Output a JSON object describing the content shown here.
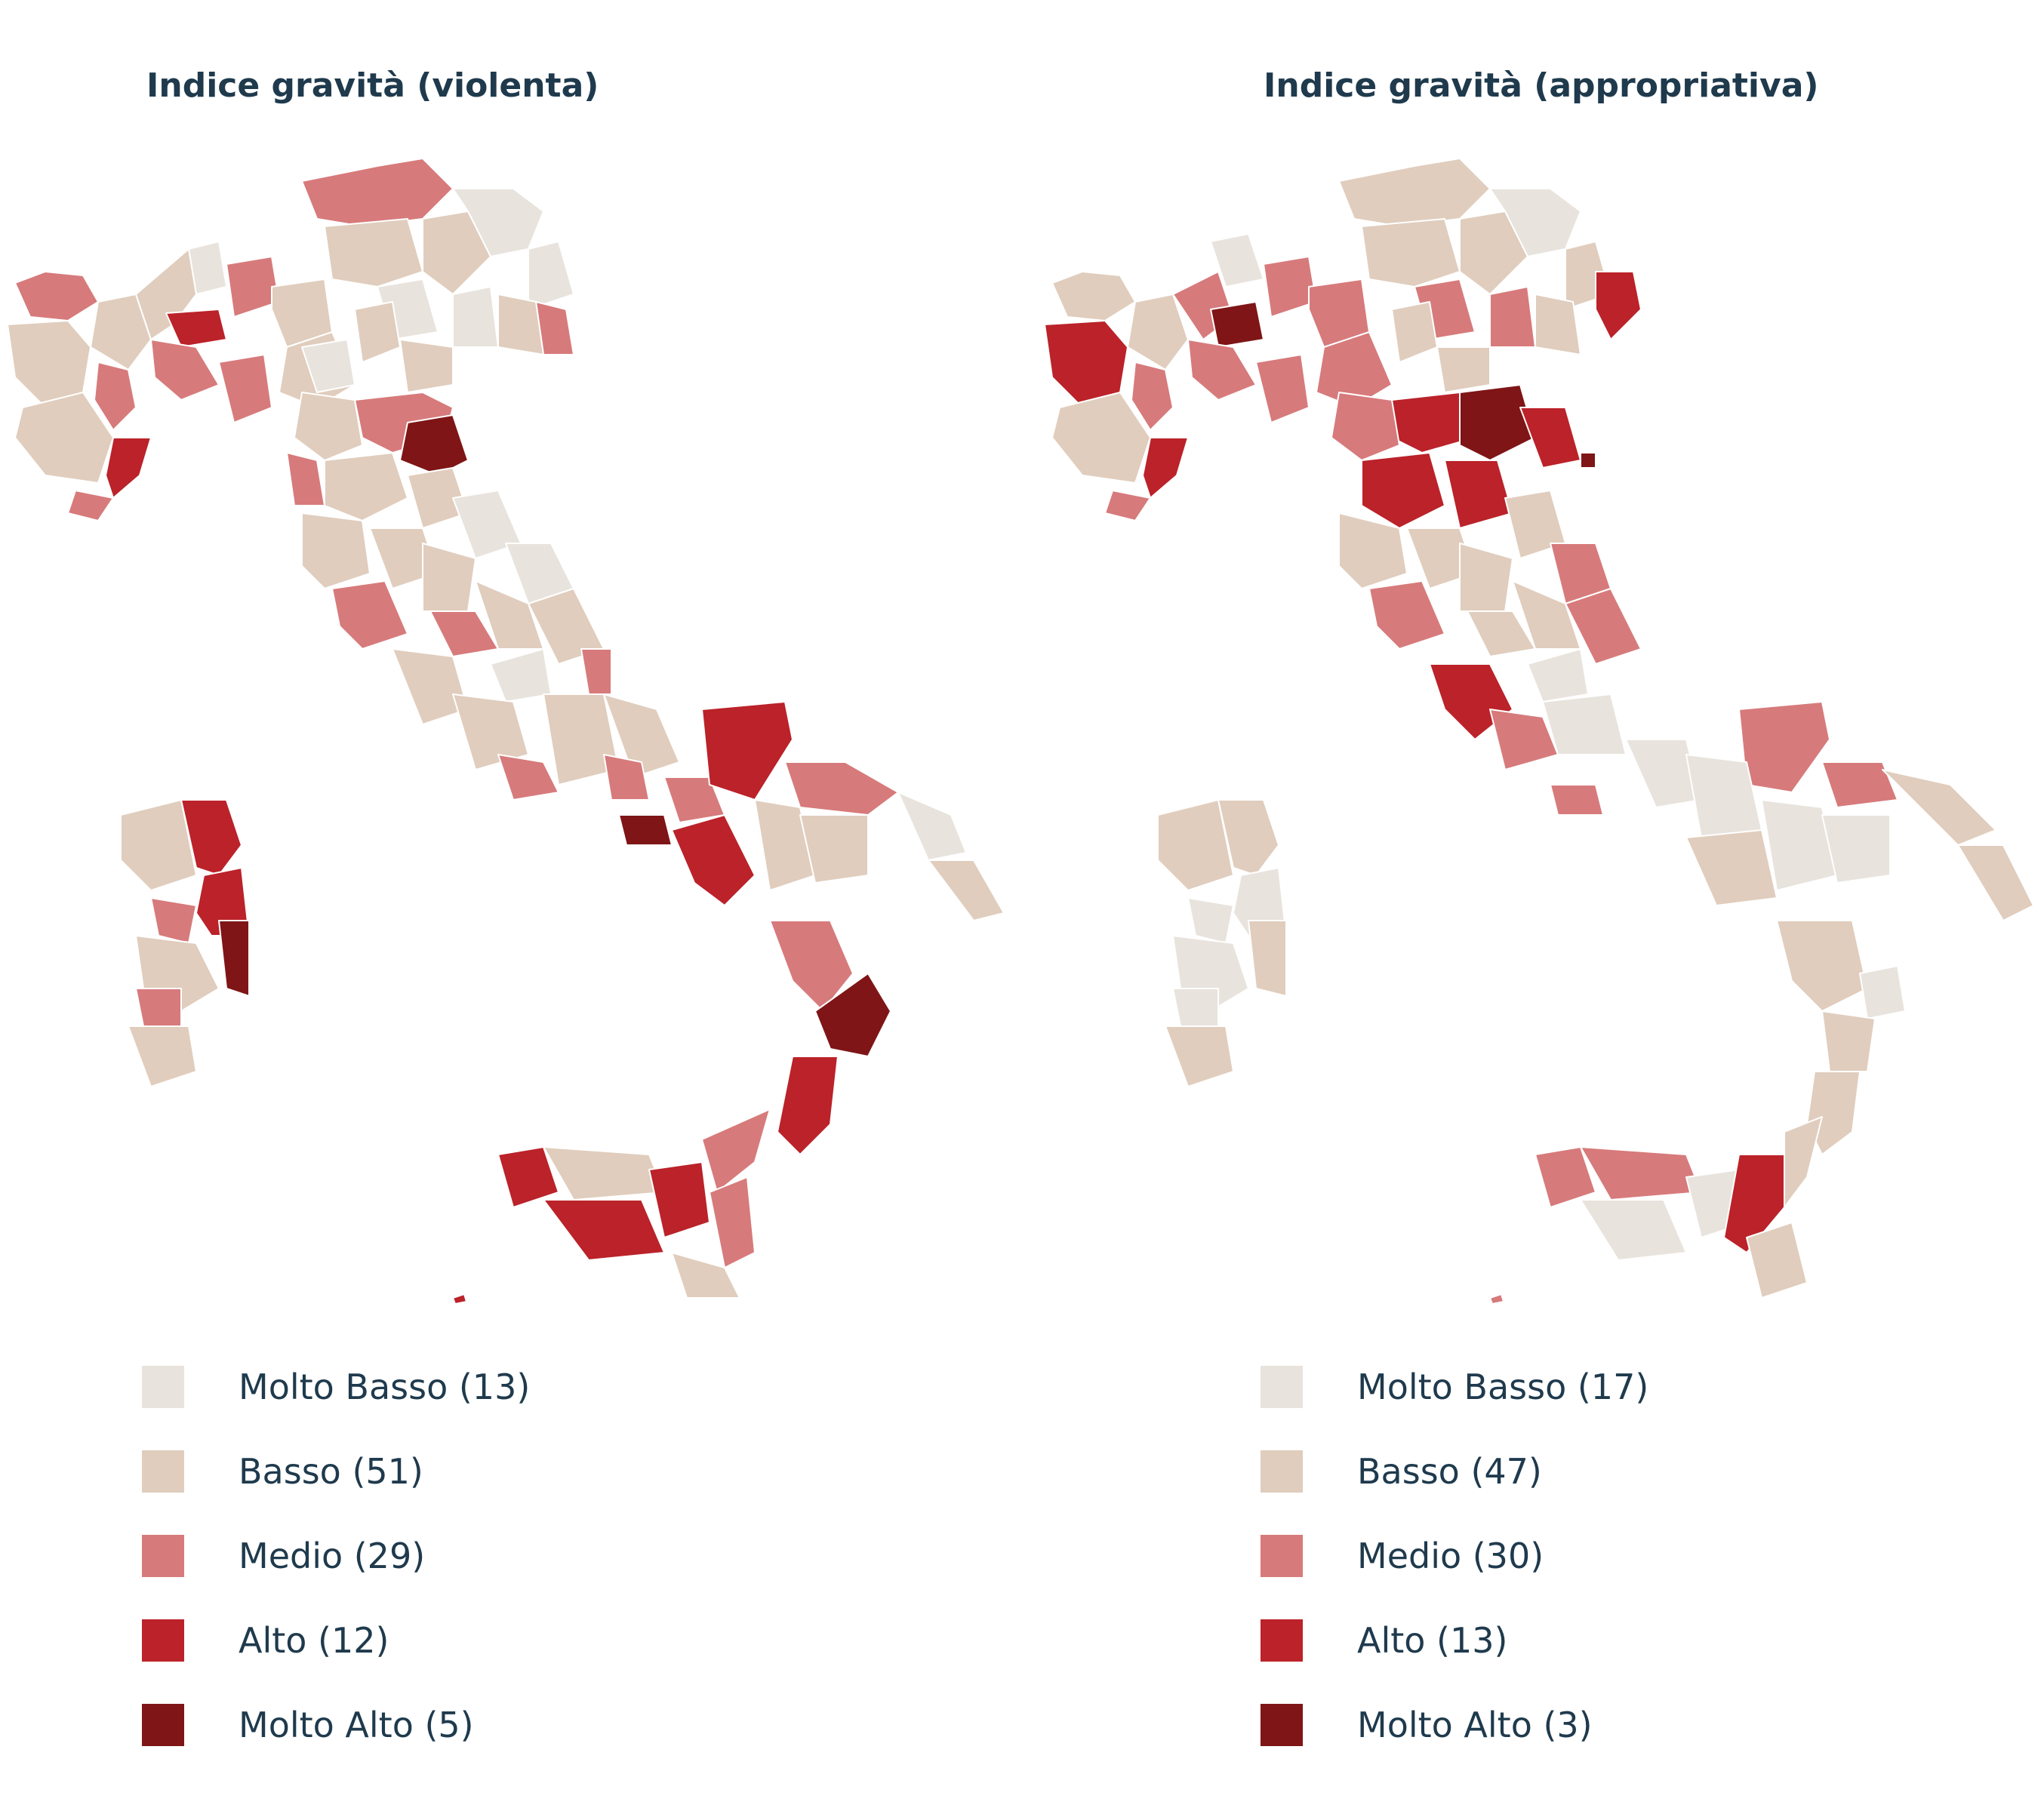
{
  "palette": {
    "molto_basso": "#e8e3dd",
    "basso": "#e0cdbd",
    "medio": "#d77a7b",
    "alto": "#bb2229",
    "molto_alto": "#7f1516"
  },
  "maps": [
    {
      "title": "Indice gravità (violenta)",
      "legend": [
        {
          "label": "Molto Basso (13)",
          "color": "#e8e3dd"
        },
        {
          "label": "Basso (51)",
          "color": "#e0cdbd"
        },
        {
          "label": "Medio (29)",
          "color": "#d77a7b"
        },
        {
          "label": "Alto (12)",
          "color": "#bb2229"
        },
        {
          "label": "Molto Alto (5)",
          "color": "#7f1516"
        }
      ]
    },
    {
      "title": "Indice gravità (appropriativa)",
      "legend": [
        {
          "label": "Molto Basso (17)",
          "color": "#e8e3dd"
        },
        {
          "label": "Basso (47)",
          "color": "#e0cdbd"
        },
        {
          "label": "Medio (30)",
          "color": "#d77a7b"
        },
        {
          "label": "Alto (13)",
          "color": "#bb2229"
        },
        {
          "label": "Molto Alto (3)",
          "color": "#7f1516"
        }
      ]
    }
  ]
}
